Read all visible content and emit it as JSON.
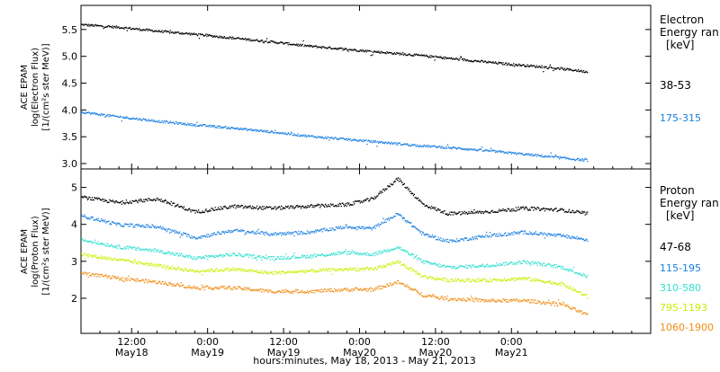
{
  "chart_data": [
    {
      "type": "scatter",
      "instrument": "ACE EPAM",
      "ylabel": "log(Electron Flux)",
      "yunits": "[1/(cm²s ster MeV)]",
      "ylim": [
        2.9,
        5.95
      ],
      "yticks": [
        "3.0",
        "3.5",
        "4.0",
        "4.5",
        "5.0",
        "5.5"
      ],
      "legend_title": [
        "Electron",
        "Energy ran",
        "[keV]"
      ],
      "series": [
        {
          "name": "38-53",
          "color": "#000000",
          "points": [
            [
              0,
              5.6
            ],
            [
              6,
              5.55
            ],
            [
              12,
              5.48
            ],
            [
              18,
              5.42
            ],
            [
              24,
              5.35
            ],
            [
              30,
              5.28
            ],
            [
              36,
              5.2
            ],
            [
              42,
              5.14
            ],
            [
              48,
              5.08
            ],
            [
              54,
              5.02
            ],
            [
              60,
              4.95
            ],
            [
              66,
              4.88
            ],
            [
              72,
              4.82
            ],
            [
              78,
              4.75
            ],
            [
              80,
              4.72
            ]
          ]
        },
        {
          "name": "175-315",
          "color": "#1a7fe0",
          "points": [
            [
              0,
              3.97
            ],
            [
              6,
              3.88
            ],
            [
              12,
              3.8
            ],
            [
              18,
              3.73
            ],
            [
              24,
              3.67
            ],
            [
              30,
              3.6
            ],
            [
              36,
              3.52
            ],
            [
              42,
              3.46
            ],
            [
              48,
              3.4
            ],
            [
              54,
              3.34
            ],
            [
              60,
              3.29
            ],
            [
              66,
              3.23
            ],
            [
              72,
              3.16
            ],
            [
              78,
              3.09
            ],
            [
              80,
              3.07
            ]
          ]
        }
      ]
    },
    {
      "type": "scatter",
      "instrument": "ACE EPAM",
      "ylabel": "log(Proton Flux)",
      "yunits": "[1/(cm²s ster MeV)]",
      "ylim": [
        1.05,
        5.5
      ],
      "yticks": [
        "2",
        "3",
        "4",
        "5"
      ],
      "legend_title": [
        "Proton",
        "Energy ran",
        "[keV]"
      ],
      "series": [
        {
          "name": "47-68",
          "color": "#000000",
          "points": [
            [
              0,
              4.75
            ],
            [
              6,
              4.6
            ],
            [
              12,
              4.7
            ],
            [
              18,
              4.35
            ],
            [
              24,
              4.5
            ],
            [
              30,
              4.45
            ],
            [
              36,
              4.5
            ],
            [
              42,
              4.55
            ],
            [
              46,
              4.7
            ],
            [
              50,
              5.25
            ],
            [
              54,
              4.55
            ],
            [
              58,
              4.3
            ],
            [
              64,
              4.35
            ],
            [
              70,
              4.45
            ],
            [
              76,
              4.4
            ],
            [
              80,
              4.3
            ]
          ]
        },
        {
          "name": "115-195",
          "color": "#1a7fe0",
          "points": [
            [
              0,
              4.25
            ],
            [
              6,
              4.0
            ],
            [
              12,
              3.95
            ],
            [
              18,
              3.65
            ],
            [
              24,
              3.85
            ],
            [
              30,
              3.75
            ],
            [
              36,
              3.8
            ],
            [
              42,
              3.95
            ],
            [
              46,
              3.9
            ],
            [
              50,
              4.3
            ],
            [
              54,
              3.75
            ],
            [
              58,
              3.55
            ],
            [
              64,
              3.7
            ],
            [
              70,
              3.8
            ],
            [
              76,
              3.7
            ],
            [
              80,
              3.6
            ]
          ]
        },
        {
          "name": "310-580",
          "color": "#30e0d0",
          "points": [
            [
              0,
              3.6
            ],
            [
              6,
              3.4
            ],
            [
              12,
              3.3
            ],
            [
              18,
              3.1
            ],
            [
              24,
              3.2
            ],
            [
              30,
              3.1
            ],
            [
              36,
              3.15
            ],
            [
              42,
              3.25
            ],
            [
              46,
              3.2
            ],
            [
              50,
              3.4
            ],
            [
              54,
              3.0
            ],
            [
              58,
              2.85
            ],
            [
              64,
              2.9
            ],
            [
              70,
              3.0
            ],
            [
              76,
              2.85
            ],
            [
              80,
              2.6
            ]
          ]
        },
        {
          "name": "795-1193",
          "color": "#ccee00",
          "points": [
            [
              0,
              3.2
            ],
            [
              6,
              3.05
            ],
            [
              12,
              2.9
            ],
            [
              18,
              2.75
            ],
            [
              24,
              2.8
            ],
            [
              30,
              2.7
            ],
            [
              36,
              2.75
            ],
            [
              42,
              2.8
            ],
            [
              46,
              2.8
            ],
            [
              50,
              3.0
            ],
            [
              54,
              2.6
            ],
            [
              58,
              2.5
            ],
            [
              64,
              2.5
            ],
            [
              70,
              2.55
            ],
            [
              76,
              2.4
            ],
            [
              80,
              2.05
            ]
          ]
        },
        {
          "name": "1060-1900",
          "color": "#f08c10",
          "points": [
            [
              0,
              2.7
            ],
            [
              6,
              2.55
            ],
            [
              12,
              2.45
            ],
            [
              18,
              2.3
            ],
            [
              24,
              2.3
            ],
            [
              30,
              2.2
            ],
            [
              36,
              2.2
            ],
            [
              42,
              2.25
            ],
            [
              46,
              2.25
            ],
            [
              50,
              2.45
            ],
            [
              54,
              2.1
            ],
            [
              58,
              2.0
            ],
            [
              64,
              1.95
            ],
            [
              70,
              1.95
            ],
            [
              76,
              1.85
            ],
            [
              80,
              1.55
            ]
          ]
        }
      ]
    }
  ],
  "x_axis": {
    "xlim_hours": [
      0,
      90
    ],
    "xlabel": "hours:minutes, May 18, 2013 - May 21, 2013",
    "ticks": [
      {
        "hour": 8,
        "time": "12:00",
        "date": "May18"
      },
      {
        "hour": 20,
        "time": "0:00",
        "date": "May19"
      },
      {
        "hour": 32,
        "time": "12:00",
        "date": "May19"
      },
      {
        "hour": 44,
        "time": "0:00",
        "date": "May20"
      },
      {
        "hour": 56,
        "time": "12:00",
        "date": "May20"
      },
      {
        "hour": 68,
        "time": "0:00",
        "date": "May21"
      }
    ]
  }
}
